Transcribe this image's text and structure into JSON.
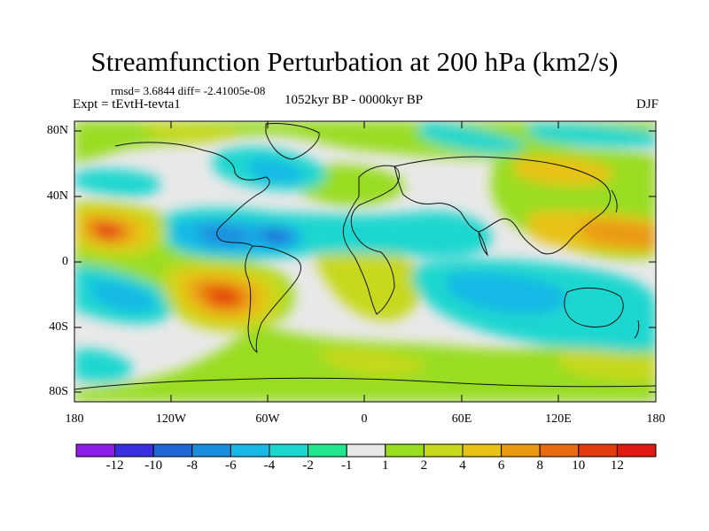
{
  "title": "Streamfunction Perturbation at 200 hPa (km2/s)",
  "stats": "rmsd= 3.6844 diff= -2.41005e-08",
  "expt": "Expt = tEvtH-tevta1",
  "period": "1052kyr BP - 0000kyr BP",
  "season": "DJF",
  "lat_labels": [
    "80N",
    "40N",
    "0",
    "40S",
    "80S"
  ],
  "lon_labels": [
    "180",
    "120W",
    "60W",
    "0",
    "60E",
    "120E",
    "180"
  ],
  "colorbar": {
    "labels": [
      "-12",
      "-10",
      "-8",
      "-6",
      "-4",
      "-2",
      "-1",
      "1",
      "2",
      "4",
      "6",
      "8",
      "10",
      "12"
    ],
    "colors": [
      "#8b1fe8",
      "#3a2fe0",
      "#1f66d6",
      "#1a8fe0",
      "#17b8e6",
      "#1ad7cf",
      "#20e690",
      "#e8e8e8",
      "#99dd22",
      "#c8d81a",
      "#e8c214",
      "#ea9a12",
      "#e86a10",
      "#e33a10",
      "#e01a12"
    ]
  },
  "map": {
    "projection": "cylindrical-equidistant",
    "lon_range": [
      -180,
      180
    ],
    "lat_range": [
      -90,
      90
    ],
    "neutral_color": "#e8e8e8"
  }
}
